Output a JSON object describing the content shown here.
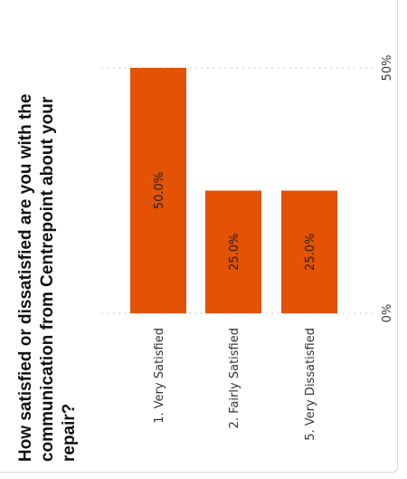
{
  "chart_data": {
    "type": "bar",
    "orientation": "horizontal",
    "title_lines": [
      "How satisfied or dissatisfied are you with the",
      "communication from Centrepoint about your",
      "repair?"
    ],
    "categories": [
      "1. Very Satisfied",
      "2. Fairly Satisfied",
      "5. Very Dissatisfied"
    ],
    "values": [
      50.0,
      25.0,
      25.0
    ],
    "data_labels": [
      "50.0%",
      "25.0%",
      "25.0%"
    ],
    "axis": {
      "min": 0,
      "max": 50,
      "ticks": [
        0,
        50
      ],
      "tick_labels": [
        "0%",
        "50%"
      ]
    },
    "grid": true,
    "bar_color": "#E35205",
    "rotated": "90deg-counterclockwise"
  }
}
